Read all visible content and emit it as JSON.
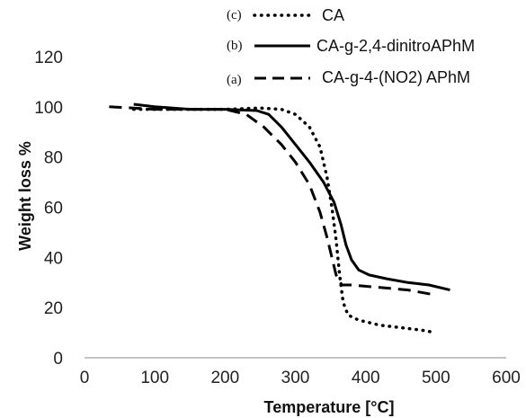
{
  "chart_data": {
    "type": "line",
    "xlabel": "Temperature [°C]",
    "ylabel": "Weight loss %",
    "xlim": [
      0,
      600
    ],
    "ylim": [
      0,
      120
    ],
    "x_ticks": [
      0,
      100,
      200,
      300,
      400,
      500,
      600
    ],
    "y_ticks": [
      0,
      20,
      40,
      60,
      80,
      100,
      120
    ],
    "grid": false,
    "legend_position": "top-right",
    "series": [
      {
        "name": "CA",
        "tag": "(c)",
        "style": "dotted",
        "color": "#000000",
        "points": [
          [
            70,
            99
          ],
          [
            100,
            99
          ],
          [
            150,
            99
          ],
          [
            200,
            99
          ],
          [
            250,
            99.5
          ],
          [
            280,
            99
          ],
          [
            300,
            97
          ],
          [
            320,
            92
          ],
          [
            335,
            84
          ],
          [
            345,
            72
          ],
          [
            352,
            60
          ],
          [
            358,
            47
          ],
          [
            363,
            33
          ],
          [
            368,
            22
          ],
          [
            375,
            17
          ],
          [
            390,
            15
          ],
          [
            420,
            13
          ],
          [
            450,
            12
          ],
          [
            480,
            11
          ],
          [
            500,
            10
          ]
        ]
      },
      {
        "name": "CA-g-2,4-dinitroAPhM",
        "tag": "(b)",
        "style": "solid",
        "color": "#000000",
        "points": [
          [
            70,
            101
          ],
          [
            100,
            100
          ],
          [
            150,
            99
          ],
          [
            200,
            99
          ],
          [
            245,
            98.5
          ],
          [
            262,
            97
          ],
          [
            280,
            92
          ],
          [
            300,
            85
          ],
          [
            320,
            78
          ],
          [
            340,
            70
          ],
          [
            355,
            62
          ],
          [
            365,
            53
          ],
          [
            372,
            45
          ],
          [
            380,
            39
          ],
          [
            390,
            35
          ],
          [
            405,
            33
          ],
          [
            430,
            31.5
          ],
          [
            460,
            30
          ],
          [
            490,
            29
          ],
          [
            520,
            27
          ]
        ]
      },
      {
        "name": "CA-g-4-(NO2) APhM",
        "tag": "(a)",
        "style": "dashed",
        "color": "#000000",
        "points": [
          [
            35,
            100
          ],
          [
            70,
            99.5
          ],
          [
            100,
            99
          ],
          [
            150,
            99
          ],
          [
            200,
            99
          ],
          [
            230,
            97
          ],
          [
            255,
            92
          ],
          [
            280,
            85
          ],
          [
            300,
            78
          ],
          [
            320,
            69
          ],
          [
            335,
            58
          ],
          [
            345,
            48
          ],
          [
            352,
            40
          ],
          [
            358,
            33
          ],
          [
            366,
            29
          ],
          [
            380,
            29
          ],
          [
            420,
            28
          ],
          [
            460,
            27
          ],
          [
            500,
            25
          ]
        ]
      }
    ]
  }
}
